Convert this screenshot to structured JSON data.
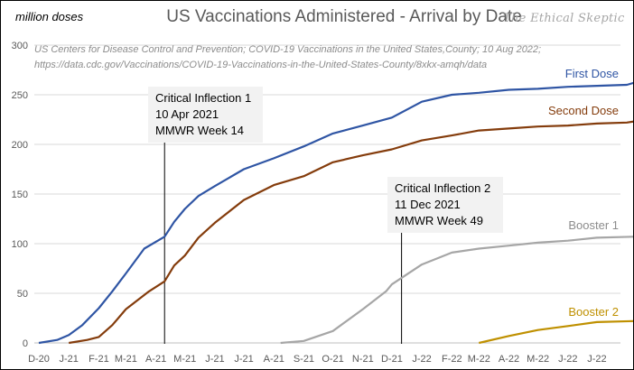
{
  "chart_data": {
    "type": "line",
    "title": "US Vaccinations Administered - Arrival by Date",
    "ylabel": "million doses",
    "ylim": [
      0,
      300
    ],
    "yticks": [
      0,
      50,
      100,
      150,
      200,
      250,
      300
    ],
    "grid": true,
    "watermark": "The Ethical Skeptic",
    "source": [
      "US Centers for Disease Control and Prevention;  COVID-19 Vaccinations in the United States,County;  10 Aug 2022;",
      "https://data.cdc.gov/Vaccinations/COVID-19-Vaccinations-in-the-United-States-County/8xkx-amqh/data"
    ],
    "xticks": [
      {
        "date": "2020-12-01",
        "label": "D-20"
      },
      {
        "date": "2021-01-01",
        "label": "J-21"
      },
      {
        "date": "2021-02-01",
        "label": "F-21"
      },
      {
        "date": "2021-03-01",
        "label": "M-21"
      },
      {
        "date": "2021-04-01",
        "label": "A-21"
      },
      {
        "date": "2021-05-01",
        "label": "M-21"
      },
      {
        "date": "2021-06-01",
        "label": "J-21"
      },
      {
        "date": "2021-07-01",
        "label": "J-21"
      },
      {
        "date": "2021-08-01",
        "label": "A-21"
      },
      {
        "date": "2021-09-01",
        "label": "S-21"
      },
      {
        "date": "2021-10-01",
        "label": "O-21"
      },
      {
        "date": "2021-11-01",
        "label": "N-21"
      },
      {
        "date": "2021-12-01",
        "label": "D-21"
      },
      {
        "date": "2022-01-01",
        "label": "J-22"
      },
      {
        "date": "2022-02-01",
        "label": "F-22"
      },
      {
        "date": "2022-03-01",
        "label": "M-22"
      },
      {
        "date": "2022-04-01",
        "label": "A-22"
      },
      {
        "date": "2022-05-01",
        "label": "M-22"
      },
      {
        "date": "2022-06-01",
        "label": "J-22"
      },
      {
        "date": "2022-07-01",
        "label": "J-22"
      }
    ],
    "series": [
      {
        "name": "First Dose",
        "color": "#2f55a4",
        "points": [
          [
            "2020-12-01",
            0
          ],
          [
            "2020-12-20",
            3
          ],
          [
            "2021-01-01",
            8
          ],
          [
            "2021-01-15",
            18
          ],
          [
            "2021-02-01",
            35
          ],
          [
            "2021-02-15",
            52
          ],
          [
            "2021-03-01",
            70
          ],
          [
            "2021-03-20",
            95
          ],
          [
            "2021-04-10",
            107
          ],
          [
            "2021-04-20",
            122
          ],
          [
            "2021-05-01",
            135
          ],
          [
            "2021-05-15",
            148
          ],
          [
            "2021-06-01",
            158
          ],
          [
            "2021-07-01",
            175
          ],
          [
            "2021-08-01",
            186
          ],
          [
            "2021-09-01",
            198
          ],
          [
            "2021-10-01",
            211
          ],
          [
            "2021-11-01",
            219
          ],
          [
            "2021-12-01",
            227
          ],
          [
            "2022-01-01",
            243
          ],
          [
            "2022-02-01",
            250
          ],
          [
            "2022-03-01",
            252
          ],
          [
            "2022-04-01",
            255
          ],
          [
            "2022-05-01",
            256
          ],
          [
            "2022-06-01",
            258
          ],
          [
            "2022-07-01",
            259
          ],
          [
            "2022-08-01",
            260
          ],
          [
            "2022-08-08",
            262
          ]
        ]
      },
      {
        "name": "Second Dose",
        "color": "#843c0c",
        "points": [
          [
            "2021-01-01",
            0
          ],
          [
            "2021-01-20",
            3
          ],
          [
            "2021-02-01",
            6
          ],
          [
            "2021-02-15",
            18
          ],
          [
            "2021-03-01",
            34
          ],
          [
            "2021-03-25",
            52
          ],
          [
            "2021-04-10",
            62
          ],
          [
            "2021-04-20",
            78
          ],
          [
            "2021-05-01",
            88
          ],
          [
            "2021-05-15",
            106
          ],
          [
            "2021-06-01",
            121
          ],
          [
            "2021-07-01",
            144
          ],
          [
            "2021-08-01",
            159
          ],
          [
            "2021-09-01",
            168
          ],
          [
            "2021-10-01",
            182
          ],
          [
            "2021-11-01",
            189
          ],
          [
            "2021-12-01",
            195
          ],
          [
            "2022-01-01",
            204
          ],
          [
            "2022-02-01",
            209
          ],
          [
            "2022-03-01",
            214
          ],
          [
            "2022-04-01",
            216
          ],
          [
            "2022-05-01",
            218
          ],
          [
            "2022-06-01",
            219
          ],
          [
            "2022-07-01",
            221
          ],
          [
            "2022-08-01",
            222
          ],
          [
            "2022-08-08",
            223
          ]
        ]
      },
      {
        "name": "Booster 1",
        "color": "#a6a6a6",
        "points": [
          [
            "2021-08-08",
            0
          ],
          [
            "2021-09-01",
            2
          ],
          [
            "2021-10-01",
            12
          ],
          [
            "2021-11-01",
            34
          ],
          [
            "2021-11-25",
            52
          ],
          [
            "2021-12-01",
            59
          ],
          [
            "2022-01-01",
            79
          ],
          [
            "2022-02-01",
            91
          ],
          [
            "2022-03-01",
            95
          ],
          [
            "2022-04-01",
            98
          ],
          [
            "2022-05-01",
            101
          ],
          [
            "2022-06-01",
            103
          ],
          [
            "2022-07-01",
            106
          ],
          [
            "2022-08-08",
            107
          ]
        ]
      },
      {
        "name": "Booster 2",
        "color": "#bf9000",
        "points": [
          [
            "2022-03-01",
            0
          ],
          [
            "2022-04-01",
            7
          ],
          [
            "2022-05-01",
            13
          ],
          [
            "2022-06-01",
            17
          ],
          [
            "2022-07-01",
            21
          ],
          [
            "2022-08-08",
            22
          ]
        ]
      }
    ],
    "annotations": [
      {
        "date": "2021-04-10",
        "lines": [
          "Critical Inflection 1",
          "10 Apr 2021",
          "MMWR Week 14"
        ]
      },
      {
        "date": "2021-12-11",
        "lines": [
          "Critical Inflection 2",
          "11 Dec 2021",
          "MMWR Week 49"
        ]
      }
    ]
  }
}
